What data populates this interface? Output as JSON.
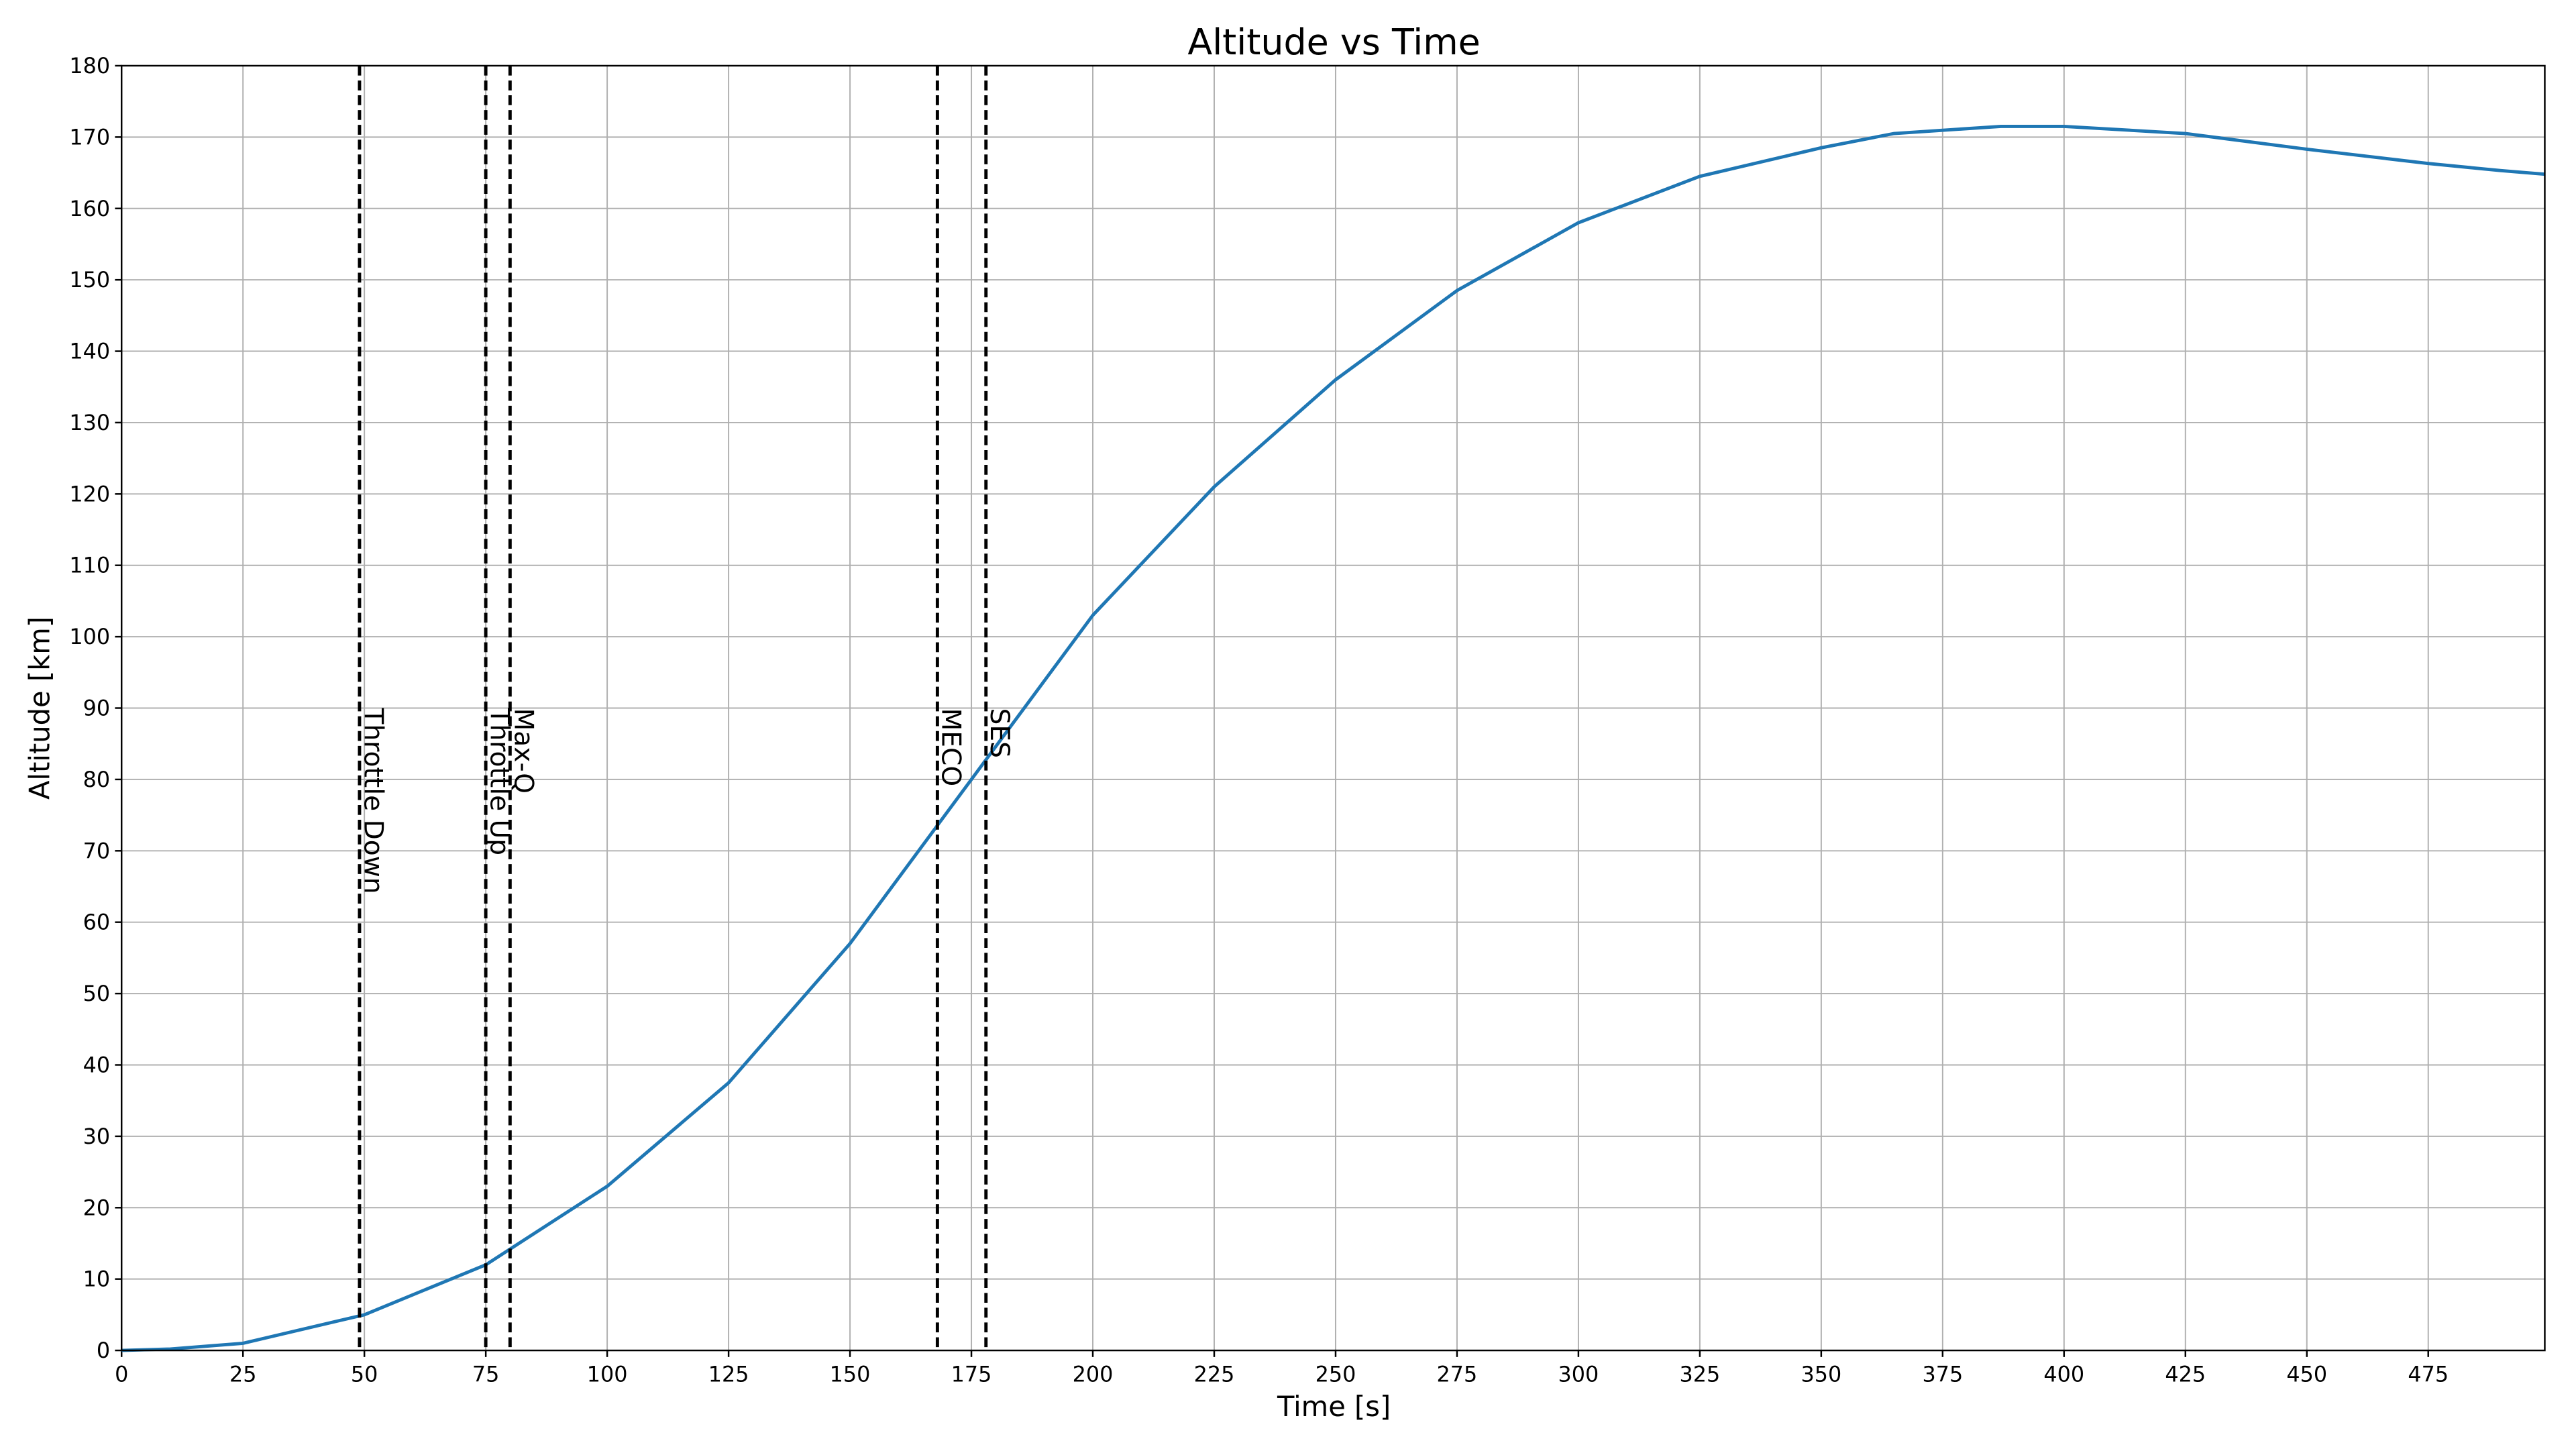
{
  "chart_data": {
    "type": "line",
    "title": "Altitude vs Time",
    "x_label": "Time [s]",
    "y_label": "Altitude [km]",
    "x": [
      0,
      10,
      25,
      50,
      75,
      100,
      125,
      150,
      175,
      200,
      225,
      250,
      275,
      300,
      325,
      350,
      365,
      387,
      400,
      425,
      450,
      475,
      490,
      499
    ],
    "series": [
      {
        "name": "Altitude",
        "color": "#1f77b4",
        "values": [
          0,
          0.2,
          1,
          5,
          12,
          23,
          37.5,
          57,
          80,
          103,
          121,
          136,
          148.5,
          158,
          164.5,
          168.5,
          170.5,
          171.5,
          171.5,
          170.5,
          168.3,
          166.3,
          165.3,
          164.8
        ]
      }
    ],
    "events": [
      {
        "x": 49,
        "label": "Throttle Down"
      },
      {
        "x": 75,
        "label": "Throttle Up"
      },
      {
        "x": 80,
        "label": "Max-Q"
      },
      {
        "x": 168,
        "label": "MECO"
      },
      {
        "x": 178,
        "label": "SES"
      }
    ],
    "event_label_y": 90,
    "xlim": [
      0,
      499
    ],
    "ylim": [
      0,
      180
    ],
    "xticks": [
      0,
      25,
      50,
      75,
      100,
      125,
      150,
      175,
      200,
      225,
      250,
      275,
      300,
      325,
      350,
      375,
      400,
      425,
      450,
      475
    ],
    "yticks": [
      0,
      10,
      20,
      30,
      40,
      50,
      60,
      70,
      80,
      90,
      100,
      110,
      120,
      130,
      140,
      150,
      160,
      170,
      180
    ],
    "grid": true
  }
}
